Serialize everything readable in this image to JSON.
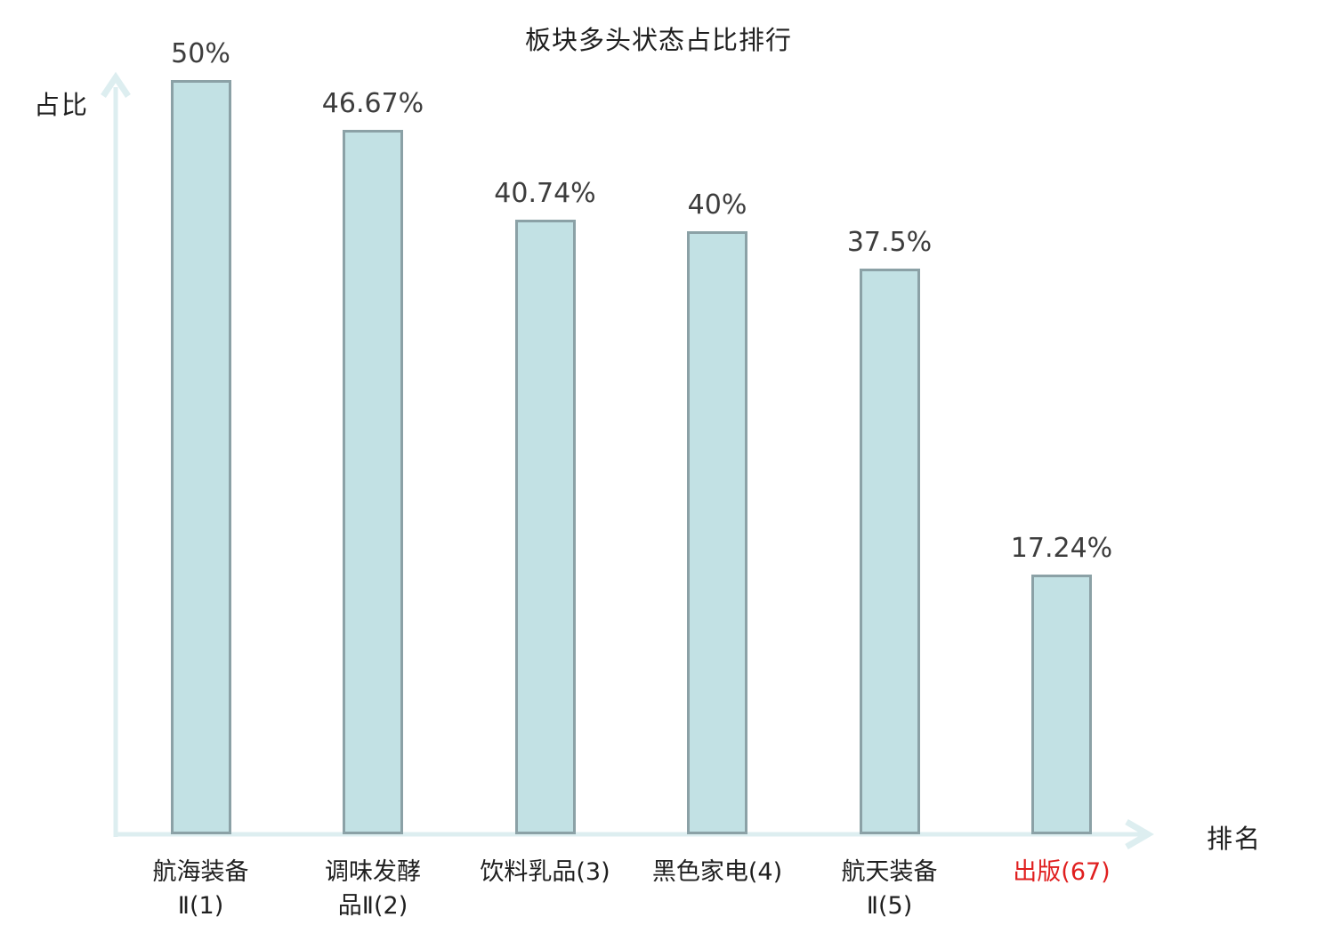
{
  "chart_data": {
    "type": "bar",
    "title": "板块多头状态占比排行",
    "xlabel": "排名",
    "ylabel": "占比",
    "ylim": [
      0,
      50
    ],
    "grid": false,
    "legend": "none",
    "categories": [
      "航海装备Ⅱ(1)",
      "调味发酵品Ⅱ(2)",
      "饮料乳品(3)",
      "黑色家电(4)",
      "航天装备Ⅱ(5)",
      "出版(67)"
    ],
    "category_lines": [
      [
        "航海装备",
        "Ⅱ(1)"
      ],
      [
        "调味发酵",
        "品Ⅱ(2)"
      ],
      [
        "饮料乳品(3)"
      ],
      [
        "黑色家电(4)"
      ],
      [
        "航天装备",
        "Ⅱ(5)"
      ],
      [
        "出版(67)"
      ]
    ],
    "values": [
      50,
      46.67,
      40.74,
      40,
      37.5,
      17.24
    ],
    "value_labels": [
      "50%",
      "46.67%",
      "40.74%",
      "40%",
      "37.5%",
      "17.24%"
    ],
    "highlight_index": 5,
    "colors": {
      "bar_fill": "#c2e1e4",
      "bar_border": "#8ba1a6",
      "axis": "#ddeef0",
      "value_text": "#3d3d3d",
      "label_text": "#1f1f1f",
      "highlight": "#e01f1f",
      "title_text": "#1f1f1f"
    }
  }
}
